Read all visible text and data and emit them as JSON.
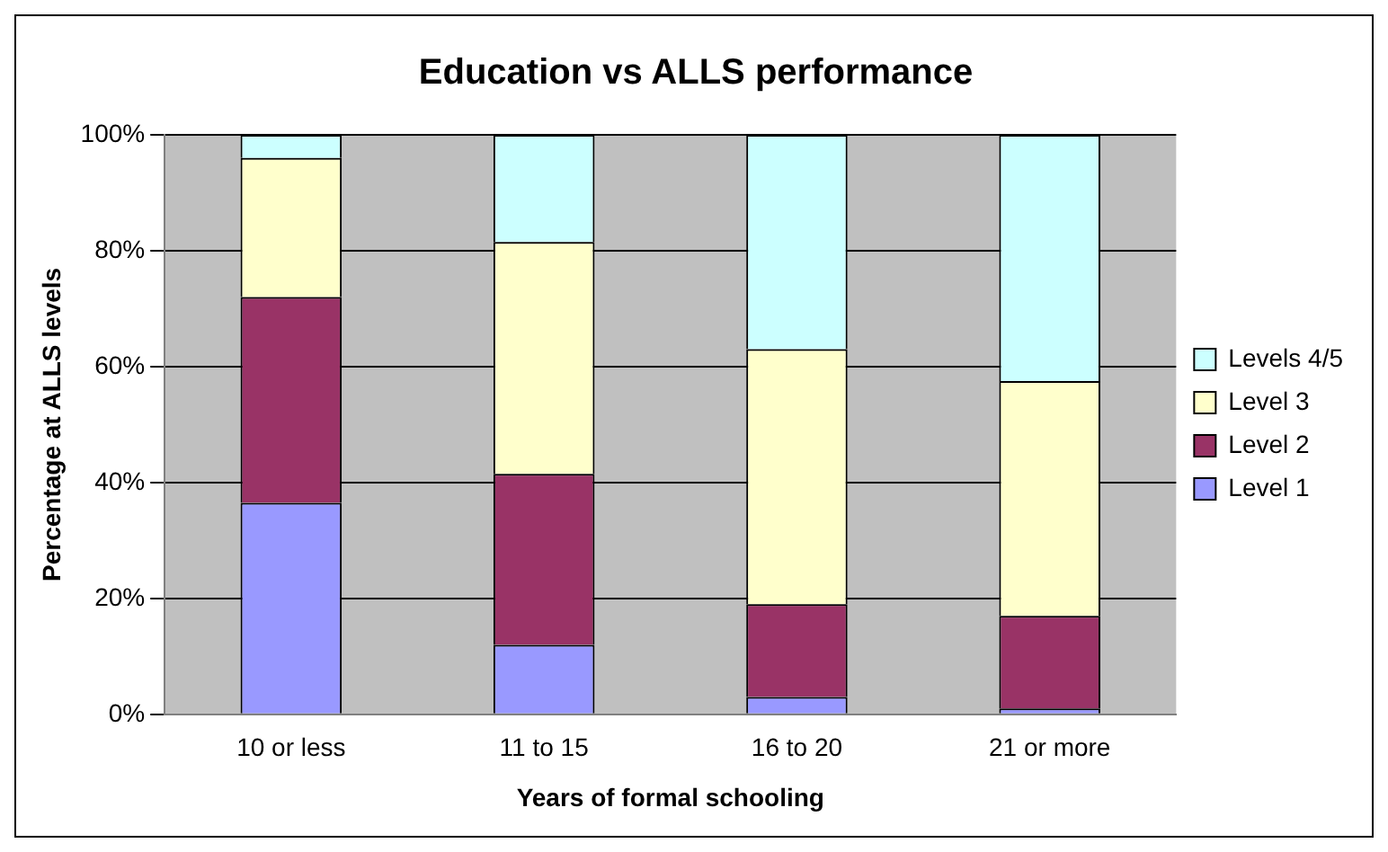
{
  "chart_data": {
    "type": "bar",
    "title": "Education vs ALLS performance",
    "xlabel": "Years of formal schooling",
    "ylabel": "Percentage at ALLS levels",
    "categories": [
      "10 or less",
      "11 to 15",
      "16 to 20",
      "21 or more"
    ],
    "stacked": true,
    "ylim": [
      0,
      100
    ],
    "yticks": [
      {
        "value": 0,
        "label": "0%"
      },
      {
        "value": 20,
        "label": "20%"
      },
      {
        "value": 40,
        "label": "40%"
      },
      {
        "value": 60,
        "label": "60%"
      },
      {
        "value": 80,
        "label": "80%"
      },
      {
        "value": 100,
        "label": "100%"
      }
    ],
    "grid": "y",
    "legend": "right",
    "series": [
      {
        "name": "Level 1",
        "color": "#9999ff",
        "values": [
          36.5,
          12,
          3,
          1
        ]
      },
      {
        "name": "Level 2",
        "color": "#993366",
        "values": [
          35.5,
          29.5,
          16,
          16
        ]
      },
      {
        "name": "Level 3",
        "color": "#ffffcc",
        "values": [
          24,
          40,
          44,
          40.5
        ]
      },
      {
        "name": "Levels 4/5",
        "color": "#ccffff",
        "values": [
          4,
          18.5,
          37,
          42.5
        ]
      }
    ]
  }
}
